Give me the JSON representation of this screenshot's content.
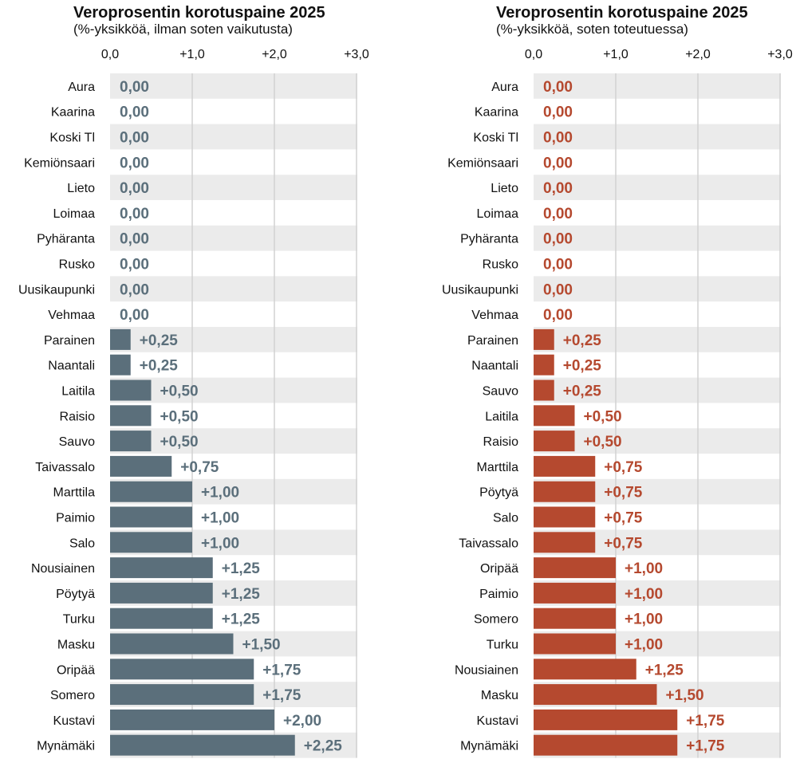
{
  "colors": {
    "left": "#5b6f7b",
    "right": "#b5492f",
    "stripe": "#ebebeb",
    "grid": "#d2d2d2"
  },
  "chart_data": [
    {
      "type": "bar",
      "orientation": "horizontal",
      "title": "Veroprosentin korotuspaine 2025",
      "subtitle": "(%-yksikköä, ilman soten vaikutusta)",
      "xlim": [
        0,
        3
      ],
      "ticks": [
        0,
        1,
        2,
        3
      ],
      "tick_labels": [
        "0,0",
        "+1,0",
        "+2,0",
        "+3,0"
      ],
      "grid": true,
      "categories": [
        "Aura",
        "Kaarina",
        "Koski Tl",
        "Kemiönsaari",
        "Lieto",
        "Loimaa",
        "Pyhäranta",
        "Rusko",
        "Uusikaupunki",
        "Vehmaa",
        "Parainen",
        "Naantali",
        "Laitila",
        "Raisio",
        "Sauvo",
        "Taivassalo",
        "Marttila",
        "Paimio",
        "Salo",
        "Nousiainen",
        "Pöytyä",
        "Turku",
        "Masku",
        "Oripää",
        "Somero",
        "Kustavi",
        "Mynämäki"
      ],
      "values": [
        0,
        0,
        0,
        0,
        0,
        0,
        0,
        0,
        0,
        0,
        0.25,
        0.25,
        0.5,
        0.5,
        0.5,
        0.75,
        1,
        1,
        1,
        1.25,
        1.25,
        1.25,
        1.5,
        1.75,
        1.75,
        2,
        2.25
      ],
      "value_labels": [
        "0,00",
        "0,00",
        "0,00",
        "0,00",
        "0,00",
        "0,00",
        "0,00",
        "0,00",
        "0,00",
        "0,00",
        "+0,25",
        "+0,25",
        "+0,50",
        "+0,50",
        "+0,50",
        "+0,75",
        "+1,00",
        "+1,00",
        "+1,00",
        "+1,25",
        "+1,25",
        "+1,25",
        "+1,50",
        "+1,75",
        "+1,75",
        "+2,00",
        "+2,25"
      ]
    },
    {
      "type": "bar",
      "orientation": "horizontal",
      "title": "Veroprosentin korotuspaine 2025",
      "subtitle": "(%-yksikköä, soten toteutuessa)",
      "xlim": [
        0,
        3
      ],
      "ticks": [
        0,
        1,
        2,
        3
      ],
      "tick_labels": [
        "0,0",
        "+1,0",
        "+2,0",
        "+3,0"
      ],
      "grid": true,
      "categories": [
        "Aura",
        "Kaarina",
        "Koski Tl",
        "Kemiönsaari",
        "Lieto",
        "Loimaa",
        "Pyhäranta",
        "Rusko",
        "Uusikaupunki",
        "Vehmaa",
        "Parainen",
        "Naantali",
        "Sauvo",
        "Laitila",
        "Raisio",
        "Marttila",
        "Pöytyä",
        "Salo",
        "Taivassalo",
        "Oripää",
        "Paimio",
        "Somero",
        "Turku",
        "Nousiainen",
        "Masku",
        "Kustavi",
        "Mynämäki"
      ],
      "values": [
        0,
        0,
        0,
        0,
        0,
        0,
        0,
        0,
        0,
        0,
        0.25,
        0.25,
        0.25,
        0.5,
        0.5,
        0.75,
        0.75,
        0.75,
        0.75,
        1,
        1,
        1,
        1,
        1.25,
        1.5,
        1.75,
        1.75
      ],
      "value_labels": [
        "0,00",
        "0,00",
        "0,00",
        "0,00",
        "0,00",
        "0,00",
        "0,00",
        "0,00",
        "0,00",
        "0,00",
        "+0,25",
        "+0,25",
        "+0,25",
        "+0,50",
        "+0,50",
        "+0,75",
        "+0,75",
        "+0,75",
        "+0,75",
        "+1,00",
        "+1,00",
        "+1,00",
        "+1,00",
        "+1,25",
        "+1,50",
        "+1,75",
        "+1,75"
      ]
    }
  ]
}
